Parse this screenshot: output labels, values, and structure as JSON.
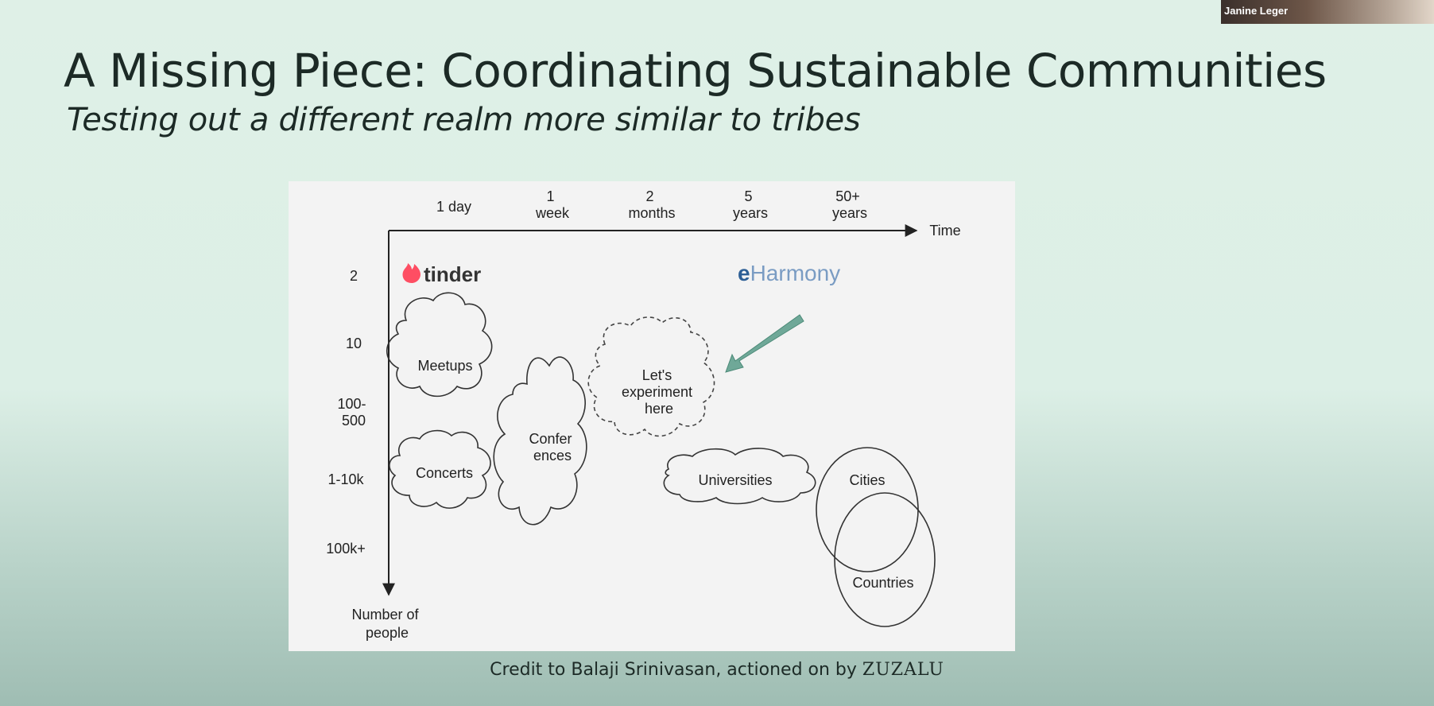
{
  "slide": {
    "title": "A Missing Piece: Coordinating Sustainable Communities",
    "subtitle": "Testing out a different realm more similar to tribes",
    "credit_text": "Credit to Balaji Srinivasan, actioned on by",
    "credit_brand": "ZUZALU"
  },
  "webcam": {
    "name": "Janine Leger"
  },
  "diagram": {
    "x_axis_label": "Time",
    "y_axis_label": [
      "Number of",
      "people"
    ],
    "time_ticks": [
      {
        "lines": [
          "1 day"
        ]
      },
      {
        "lines": [
          "1",
          "week"
        ]
      },
      {
        "lines": [
          "2",
          "months"
        ]
      },
      {
        "lines": [
          "5",
          "years"
        ]
      },
      {
        "lines": [
          "50+",
          "years"
        ]
      }
    ],
    "people_ticks": [
      {
        "lines": [
          "2"
        ]
      },
      {
        "lines": [
          "10"
        ]
      },
      {
        "lines": [
          "100-",
          "500"
        ]
      },
      {
        "lines": [
          "1-10k"
        ]
      },
      {
        "lines": [
          "100k+"
        ]
      }
    ],
    "logos": {
      "tinder": "tinder",
      "eharmony_e": "e",
      "eharmony_rest": "Harmony"
    },
    "clouds": {
      "meetups": [
        "Meetups"
      ],
      "concerts": [
        "Concerts"
      ],
      "conferences": [
        "Confer",
        "ences"
      ],
      "experiment": [
        "Let's",
        "experiment",
        "here"
      ],
      "universities": [
        "Universities"
      ]
    },
    "circles": {
      "cities": "Cities",
      "countries": "Countries"
    },
    "colors": {
      "arrow": "#6fa898",
      "tinder": "#fe4e63",
      "eharmony": "#6b8eb5"
    }
  }
}
